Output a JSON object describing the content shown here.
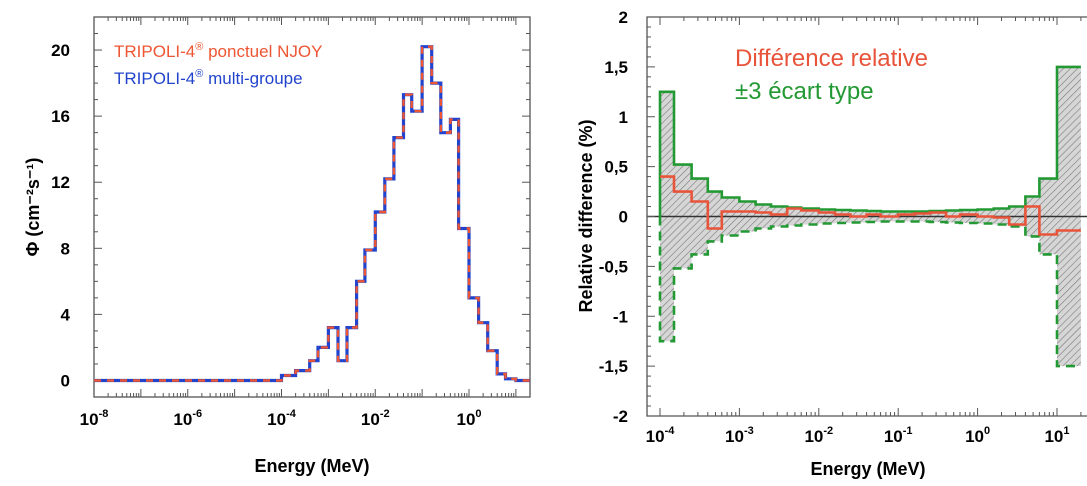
{
  "colors": {
    "njoy": "#ee5533",
    "multigroup": "#2244cc",
    "diff": "#e8543a",
    "sigma": "#229933",
    "hatch_fill": "#c8c8c8",
    "axis": "#555555"
  },
  "chart_data": [
    {
      "type": "line",
      "xscale": "log",
      "xlim": [
        1e-08,
        20
      ],
      "ylim": [
        -1,
        22
      ],
      "xlabel": "Energy (MeV)",
      "ylabel": "Φ (cm⁻²s⁻¹)",
      "grid": false,
      "legend": "top-left",
      "xticks": [
        1e-08,
        1e-06,
        0.0001,
        0.01,
        1
      ],
      "xtick_labels": [
        {
          "base": "10",
          "exp": "-8"
        },
        {
          "base": "10",
          "exp": "-6"
        },
        {
          "base": "10",
          "exp": "-4"
        },
        {
          "base": "10",
          "exp": "-2"
        },
        {
          "base": "10",
          "exp": "0"
        }
      ],
      "yticks": [
        0,
        4,
        8,
        12,
        16,
        20
      ],
      "ytick_labels": [
        "0",
        "4",
        "8",
        "12",
        "16",
        "20"
      ],
      "series": [
        {
          "name": "TRIPOLI-4® ponctuel NJOY",
          "name_main": "TRIPOLI-4",
          "name_sup": "®",
          "name_tail": " ponctuel NJOY",
          "style": "dashed"
        },
        {
          "name": "TRIPOLI-4® multi-groupe",
          "name_main": "TRIPOLI-4",
          "name_sup": "®",
          "name_tail": " multi-groupe",
          "style": "solid"
        }
      ],
      "step_edges": [
        1e-08,
        0.0001,
        0.0002,
        0.0004,
        0.0006,
        0.001,
        0.0016,
        0.0025,
        0.004,
        0.006,
        0.01,
        0.016,
        0.025,
        0.04,
        0.06,
        0.1,
        0.16,
        0.25,
        0.4,
        0.6,
        1.0,
        1.6,
        2.5,
        4.0,
        6.0,
        10.0,
        20.0
      ],
      "step_values": [
        0,
        0.3,
        0.6,
        1.2,
        2.0,
        3.2,
        1.2,
        3.2,
        6.0,
        7.9,
        10.2,
        12.2,
        14.7,
        17.3,
        16.3,
        20.2,
        18.0,
        15.0,
        15.8,
        9.2,
        5.0,
        3.5,
        1.8,
        0.4,
        0.1,
        0.0
      ]
    },
    {
      "type": "line",
      "xscale": "log",
      "xlim": [
        0.0001,
        20
      ],
      "ylim": [
        -2,
        2
      ],
      "xlabel": "Energy (MeV)",
      "ylabel": "Relative difference (%)",
      "grid": false,
      "legend": "top-center",
      "xticks": [
        0.0001,
        0.001,
        0.01,
        0.1,
        1,
        10
      ],
      "xtick_labels": [
        {
          "base": "10",
          "exp": "-4"
        },
        {
          "base": "10",
          "exp": "-3"
        },
        {
          "base": "10",
          "exp": "-2"
        },
        {
          "base": "10",
          "exp": "-1"
        },
        {
          "base": "10",
          "exp": "0"
        },
        {
          "base": "10",
          "exp": "1"
        }
      ],
      "yticks": [
        -2,
        -1.5,
        -1,
        -0.5,
        0,
        0.5,
        1,
        1.5,
        2
      ],
      "ytick_labels": [
        "-2",
        "-1,5",
        "-1",
        "-0,5",
        "0",
        "0,5",
        "1",
        "1,5",
        "2"
      ],
      "series": [
        {
          "name": "Différence relative",
          "style": "solid"
        },
        {
          "name": "±3 écart type",
          "style": "solid/dashed"
        }
      ],
      "step_edges": [
        0.0001,
        0.00015,
        0.00025,
        0.0004,
        0.0006,
        0.001,
        0.0016,
        0.0025,
        0.004,
        0.006,
        0.01,
        0.016,
        0.025,
        0.04,
        0.06,
        0.1,
        0.16,
        0.25,
        0.4,
        0.6,
        1.0,
        1.6,
        2.5,
        4.0,
        6.0,
        10.0,
        20.0
      ],
      "difference": [
        0.4,
        0.25,
        0.15,
        -0.12,
        0.05,
        0.05,
        0.04,
        0.02,
        0.08,
        0.06,
        0.04,
        0.02,
        0.0,
        0.02,
        0.0,
        0.02,
        0.03,
        0.04,
        0.0,
        0.02,
        0.0,
        -0.01,
        -0.08,
        0.1,
        -0.18,
        -0.14
      ],
      "sigma3": [
        1.25,
        0.52,
        0.38,
        0.25,
        0.19,
        0.15,
        0.12,
        0.1,
        0.09,
        0.08,
        0.07,
        0.065,
        0.06,
        0.055,
        0.05,
        0.05,
        0.05,
        0.055,
        0.06,
        0.065,
        0.07,
        0.08,
        0.1,
        0.2,
        0.38,
        1.5
      ],
      "reference_line": 0
    }
  ],
  "legend_left": {
    "line1_main": "TRIPOLI-4",
    "line1_sup": "®",
    "line1_tail": " ponctuel NJOY",
    "line2_main": "TRIPOLI-4",
    "line2_sup": "®",
    "line2_tail": " multi-groupe"
  },
  "legend_right": {
    "line1": "Différence relative",
    "line2": "±3 écart type"
  }
}
